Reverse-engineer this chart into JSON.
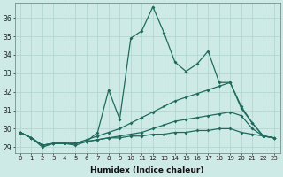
{
  "xlabel": "Humidex (Indice chaleur)",
  "bg_color": "#ceeae6",
  "grid_color": "#add4cf",
  "line_color": "#1e6b5e",
  "xlim": [
    -0.5,
    23.5
  ],
  "ylim": [
    28.7,
    36.8
  ],
  "yticks": [
    29,
    30,
    31,
    32,
    33,
    34,
    35,
    36
  ],
  "xticks": [
    0,
    1,
    2,
    3,
    4,
    5,
    6,
    7,
    8,
    9,
    10,
    11,
    12,
    13,
    14,
    15,
    16,
    17,
    18,
    19,
    20,
    21,
    22,
    23
  ],
  "line1_x": [
    0,
    1,
    2,
    3,
    4,
    5,
    6,
    7,
    8,
    9,
    10,
    11,
    12,
    13,
    14,
    15,
    16,
    17,
    18,
    19,
    20,
    21,
    22,
    23
  ],
  "line1_y": [
    29.8,
    29.5,
    29.0,
    29.2,
    29.2,
    29.1,
    29.3,
    29.8,
    32.1,
    30.5,
    34.9,
    35.3,
    36.6,
    35.2,
    33.6,
    33.1,
    33.5,
    34.2,
    32.5,
    32.5,
    31.1,
    30.3,
    29.6,
    29.5
  ],
  "line2_x": [
    0,
    1,
    2,
    3,
    4,
    5,
    6,
    7,
    8,
    9,
    10,
    11,
    12,
    13,
    14,
    15,
    16,
    17,
    18,
    19,
    20,
    21,
    22,
    23
  ],
  "line2_y": [
    29.8,
    29.5,
    29.1,
    29.2,
    29.2,
    29.2,
    29.4,
    29.6,
    29.8,
    30.0,
    30.3,
    30.6,
    30.9,
    31.2,
    31.5,
    31.7,
    31.9,
    32.1,
    32.3,
    32.5,
    31.2,
    30.3,
    29.6,
    29.5
  ],
  "line3_x": [
    0,
    1,
    2,
    3,
    4,
    5,
    6,
    7,
    8,
    9,
    10,
    11,
    12,
    13,
    14,
    15,
    16,
    17,
    18,
    19,
    20,
    21,
    22,
    23
  ],
  "line3_y": [
    29.8,
    29.5,
    29.1,
    29.2,
    29.2,
    29.2,
    29.3,
    29.4,
    29.5,
    29.6,
    29.7,
    29.8,
    30.0,
    30.2,
    30.4,
    30.5,
    30.6,
    30.7,
    30.8,
    30.9,
    30.7,
    30.0,
    29.6,
    29.5
  ],
  "line4_x": [
    0,
    1,
    2,
    3,
    4,
    5,
    6,
    7,
    8,
    9,
    10,
    11,
    12,
    13,
    14,
    15,
    16,
    17,
    18,
    19,
    20,
    21,
    22,
    23
  ],
  "line4_y": [
    29.8,
    29.5,
    29.1,
    29.2,
    29.2,
    29.2,
    29.3,
    29.4,
    29.5,
    29.5,
    29.6,
    29.6,
    29.7,
    29.7,
    29.8,
    29.8,
    29.9,
    29.9,
    30.0,
    30.0,
    29.8,
    29.7,
    29.6,
    29.5
  ]
}
